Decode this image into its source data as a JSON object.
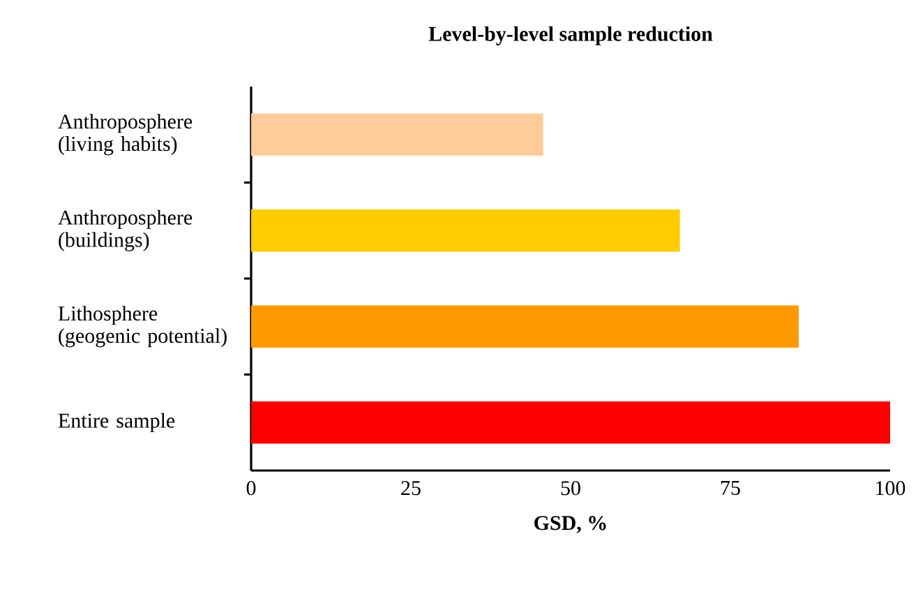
{
  "chart_data": {
    "type": "bar",
    "orientation": "horizontal",
    "title": "Level-by-level sample reduction",
    "xlabel": "GSD, %",
    "categories": [
      "Anthroposphere (living habits)",
      "Anthroposphere (buildings)",
      "Lithosphere (geogenic potential)",
      "Entire sample"
    ],
    "values": [
      45.7,
      67.1,
      85.7,
      100
    ],
    "colors": [
      "#ffcc99",
      "#ffcc00",
      "#ff9900",
      "#ff0000"
    ],
    "xlim": [
      0,
      100
    ],
    "xticks": [
      0,
      25,
      50,
      75,
      100
    ],
    "grid": false
  }
}
